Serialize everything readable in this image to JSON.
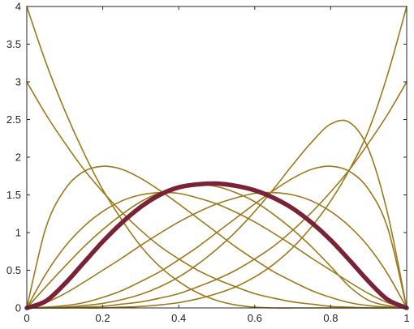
{
  "chart_data": {
    "type": "line",
    "title": "",
    "xlabel": "",
    "ylabel": "",
    "xlim": [
      0,
      1
    ],
    "ylim": [
      0,
      4
    ],
    "grid": false,
    "x_ticks": [
      0,
      0.2,
      0.4,
      0.6,
      0.8,
      1
    ],
    "x_tick_labels": [
      "0",
      "0.2",
      "0.4",
      "0.6",
      "0.8",
      "1"
    ],
    "y_ticks": [
      0,
      0.5,
      1,
      1.5,
      2,
      2.5,
      3,
      3.5,
      4
    ],
    "y_tick_labels": [
      "0",
      "0.5",
      "1",
      "1.5",
      "2",
      "2.5",
      "3",
      "3.5",
      "4"
    ],
    "x": [
      0,
      0.05,
      0.1,
      0.15,
      0.2,
      0.25,
      0.3,
      0.35,
      0.4,
      0.45,
      0.5,
      0.55,
      0.6,
      0.65,
      0.7,
      0.75,
      0.8,
      0.85,
      0.9,
      0.95,
      1
    ],
    "series": [
      {
        "color": "#9a7a1e",
        "width": 1.6,
        "values": [
          4,
          3.26,
          2.62,
          2.06,
          1.57,
          1.17,
          0.82,
          0.55,
          0.35,
          0.2,
          0.1,
          0.04,
          0.01,
          0.0,
          0.0,
          0.0,
          0.0,
          0.0,
          0.0,
          0.0,
          0
        ]
      },
      {
        "color": "#9a7a1e",
        "width": 1.6,
        "values": [
          3,
          2.57,
          2.19,
          1.84,
          1.54,
          1.27,
          1.03,
          0.82,
          0.65,
          0.5,
          0.38,
          0.28,
          0.19,
          0.13,
          0.08,
          0.05,
          0.02,
          0.01,
          0.0,
          0.0,
          0
        ]
      },
      {
        "color": "#9a7a1e",
        "width": 1.6,
        "values": [
          0,
          1.06,
          1.57,
          1.81,
          1.88,
          1.84,
          1.72,
          1.56,
          1.38,
          1.19,
          1.0,
          0.81,
          0.64,
          0.48,
          0.35,
          0.23,
          0.14,
          0.07,
          0.03,
          0.01,
          0
        ]
      },
      {
        "color": "#9a7a1e",
        "width": 1.6,
        "values": [
          0,
          0.45,
          0.81,
          1.08,
          1.28,
          1.42,
          1.5,
          1.53,
          1.52,
          1.46,
          1.38,
          1.27,
          1.14,
          0.99,
          0.83,
          0.66,
          0.5,
          0.34,
          0.19,
          0.07,
          0
        ]
      },
      {
        "color": "#9a7a1e",
        "width": 1.6,
        "values": [
          0,
          0.28,
          0.55,
          0.81,
          1.04,
          1.24,
          1.41,
          1.53,
          1.61,
          1.64,
          1.61,
          1.53,
          1.41,
          1.24,
          1.04,
          0.81,
          0.55,
          0.28,
          0.1,
          0.03,
          0
        ]
      },
      {
        "color": "#9a7a1e",
        "width": 1.6,
        "values": [
          0,
          0.07,
          0.19,
          0.34,
          0.5,
          0.66,
          0.83,
          0.99,
          1.14,
          1.27,
          1.38,
          1.46,
          1.52,
          1.53,
          1.5,
          1.42,
          1.28,
          1.08,
          0.81,
          0.45,
          0
        ]
      },
      {
        "color": "#9a7a1e",
        "width": 1.6,
        "values": [
          0,
          0.01,
          0.03,
          0.07,
          0.14,
          0.23,
          0.35,
          0.48,
          0.64,
          0.81,
          1.0,
          1.19,
          1.38,
          1.56,
          1.72,
          1.84,
          1.88,
          1.81,
          1.57,
          1.06,
          0
        ]
      },
      {
        "color": "#9a7a1e",
        "width": 1.6,
        "values": [
          0,
          0.0,
          0.01,
          0.03,
          0.06,
          0.11,
          0.18,
          0.28,
          0.41,
          0.58,
          0.78,
          1.01,
          1.28,
          1.58,
          1.9,
          2.2,
          2.44,
          2.46,
          2.1,
          1.25,
          0
        ]
      },
      {
        "color": "#9a7a1e",
        "width": 1.6,
        "values": [
          0,
          0.0,
          0.0,
          0.01,
          0.02,
          0.05,
          0.08,
          0.13,
          0.19,
          0.28,
          0.38,
          0.5,
          0.65,
          0.82,
          1.03,
          1.27,
          1.54,
          1.84,
          2.19,
          2.57,
          3
        ]
      },
      {
        "color": "#9a7a1e",
        "width": 1.6,
        "values": [
          0,
          0.0,
          0.0,
          0.0,
          0.0,
          0.01,
          0.02,
          0.04,
          0.07,
          0.12,
          0.19,
          0.28,
          0.41,
          0.58,
          0.8,
          1.08,
          1.42,
          1.84,
          2.36,
          3.1,
          4
        ]
      },
      {
        "color": "#7a2236",
        "width": 5.5,
        "values": [
          0,
          0.09,
          0.32,
          0.6,
          0.88,
          1.13,
          1.34,
          1.5,
          1.6,
          1.64,
          1.65,
          1.62,
          1.56,
          1.46,
          1.32,
          1.13,
          0.9,
          0.63,
          0.35,
          0.11,
          0
        ]
      }
    ]
  }
}
